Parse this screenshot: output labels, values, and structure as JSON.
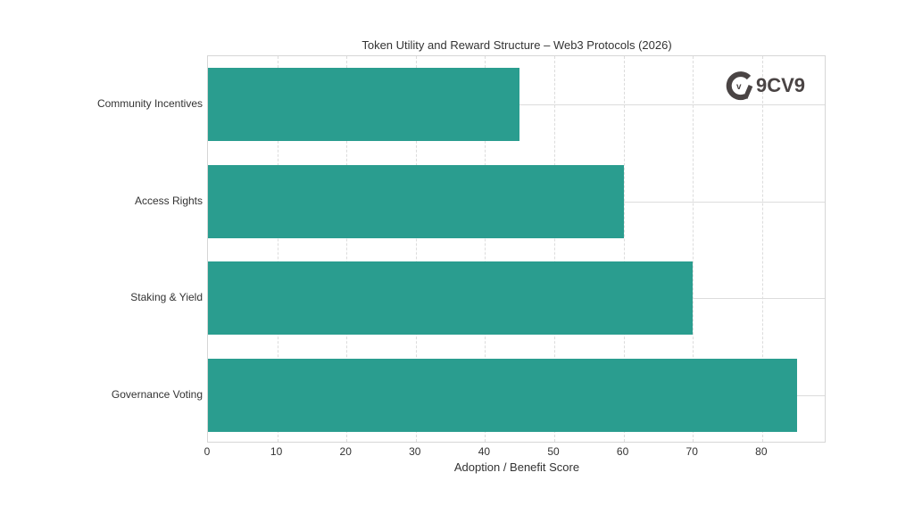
{
  "chart_data": {
    "type": "bar",
    "orientation": "horizontal",
    "title": "Token Utility and Reward Structure – Web3 Protocols (2026)",
    "xlabel": "Adoption / Benefit Score",
    "ylabel": "",
    "categories": [
      "Community Incentives",
      "Access Rights",
      "Staking & Yield",
      "Governance Voting"
    ],
    "values": [
      45,
      60,
      70,
      85
    ],
    "xlim": [
      0,
      89.3
    ],
    "xticks": [
      "0",
      "10",
      "20",
      "30",
      "40",
      "50",
      "60",
      "70",
      "80"
    ],
    "grid": true,
    "bar_color": "#2a9d8f",
    "legend": null
  },
  "logo": {
    "text": "9CV9",
    "color": "#4a4444"
  }
}
